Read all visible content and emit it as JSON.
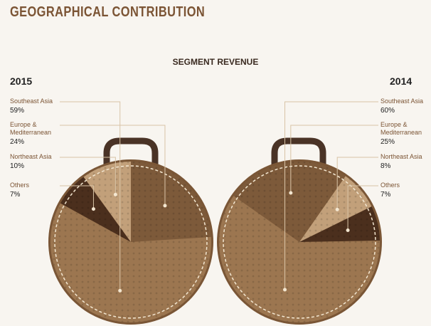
{
  "title": "GEOGRAPHICAL CONTRIBUTION",
  "subtitle": "SEGMENT REVENUE",
  "chart_data": [
    {
      "type": "pie",
      "title": "2015",
      "categories": [
        "Southeast Asia",
        "Europe & Mediterranean",
        "Northeast Asia",
        "Others"
      ],
      "values": [
        59,
        24,
        10,
        7
      ],
      "value_labels": [
        "59%",
        "24%",
        "10%",
        "7%"
      ],
      "colors": [
        "#9c7650",
        "#7d5a3a",
        "#c2a07a",
        "#4b2f1d"
      ]
    },
    {
      "type": "pie",
      "title": "2014",
      "categories": [
        "Southeast Asia",
        "Europe & Mediterranean",
        "Northeast Asia",
        "Others"
      ],
      "values": [
        60,
        25,
        8,
        7
      ],
      "value_labels": [
        "60%",
        "25%",
        "8%",
        "7%"
      ],
      "colors": [
        "#9c7650",
        "#7d5a3a",
        "#c2a07a",
        "#4b2f1d"
      ]
    }
  ]
}
